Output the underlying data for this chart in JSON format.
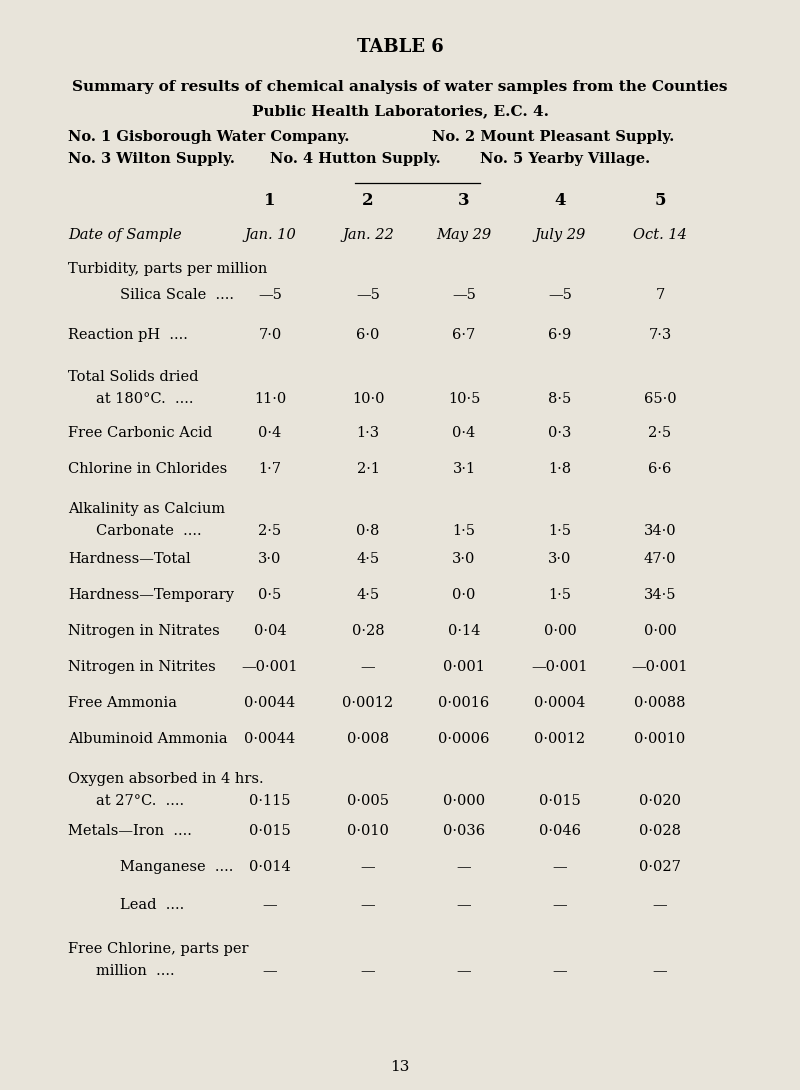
{
  "title": "TABLE 6",
  "subtitle_line1": "Summary of results of chemical analysis of water samples from the Counties",
  "subtitle_line2": "Public Health Laboratories, E.C. 4.",
  "subtitle_line3a": "No. 1 Gisborough Water Company.",
  "subtitle_line3b": "No. 2 Mount Pleasant Supply.",
  "subtitle_line4a": "No. 3 Wilton Supply.",
  "subtitle_line4b": "No. 4 Hutton Supply.",
  "subtitle_line4c": "No. 5 Yearby Village.",
  "col_headers": [
    "1",
    "2",
    "3",
    "4",
    "5"
  ],
  "background_color": "#e8e4da",
  "rows": [
    {
      "label": "Date of Sample",
      "label2": null,
      "indent": 0,
      "italic": true,
      "dots": false,
      "values": [
        "Jan. 10",
        "Jan. 22",
        "May 29",
        "July 29",
        "Oct. 14"
      ],
      "italic_vals": true
    },
    {
      "label": "Turbidity, parts per million",
      "label2": null,
      "indent": 0,
      "italic": false,
      "dots": false,
      "values": [
        null,
        null,
        null,
        null,
        null
      ],
      "section_header": true
    },
    {
      "label": "Silica Scale",
      "label2": null,
      "indent": 1,
      "italic": false,
      "dots": true,
      "values": [
        "—5",
        "—5",
        "—5",
        "—5",
        "7"
      ]
    },
    {
      "label": "Reaction pH",
      "label2": null,
      "indent": 0,
      "italic": false,
      "dots": true,
      "values": [
        "7·0",
        "6·0",
        "6·7",
        "6·9",
        "7·3"
      ]
    },
    {
      "label": "Total Solids dried",
      "label2": "at 180°C.",
      "indent": 0,
      "italic": false,
      "dots": true,
      "values": [
        "11·0",
        "10·0",
        "10·5",
        "8·5",
        "65·0"
      ]
    },
    {
      "label": "Free Carbonic Acid",
      "label2": null,
      "indent": 0,
      "italic": false,
      "dots": false,
      "values": [
        "0·4",
        "1·3",
        "0·4",
        "0·3",
        "2·5"
      ]
    },
    {
      "label": "Chlorine in Chlorides",
      "label2": null,
      "indent": 0,
      "italic": false,
      "dots": false,
      "values": [
        "1·7",
        "2·1",
        "3·1",
        "1·8",
        "6·6"
      ]
    },
    {
      "label": "Alkalinity as Calcium",
      "label2": "Carbonate",
      "indent": 0,
      "italic": false,
      "dots": true,
      "values": [
        "2·5",
        "0·8",
        "1·5",
        "1·5",
        "34·0"
      ]
    },
    {
      "label": "Hardness—Total",
      "label2": null,
      "indent": 0,
      "italic": false,
      "dots": false,
      "values": [
        "3·0",
        "4·5",
        "3·0",
        "3·0",
        "47·0"
      ]
    },
    {
      "label": "Hardness—Temporary",
      "label2": null,
      "indent": 0,
      "italic": false,
      "dots": false,
      "values": [
        "0·5",
        "4·5",
        "0·0",
        "1·5",
        "34·5"
      ]
    },
    {
      "label": "Nitrogen in Nitrates",
      "label2": null,
      "indent": 0,
      "italic": false,
      "dots": false,
      "values": [
        "0·04",
        "0·28",
        "0·14",
        "0·00",
        "0·00"
      ]
    },
    {
      "label": "Nitrogen in Nitrites",
      "label2": null,
      "indent": 0,
      "italic": false,
      "dots": false,
      "values": [
        "—0·001",
        "—",
        "0·001",
        "—0·001",
        "—0·001"
      ]
    },
    {
      "label": "Free Ammonia",
      "label2": null,
      "indent": 0,
      "italic": false,
      "dots": false,
      "values": [
        "0·0044",
        "0·0012",
        "0·0016",
        "0·0004",
        "0·0088"
      ]
    },
    {
      "label": "Albuminoid Ammonia",
      "label2": null,
      "indent": 0,
      "italic": false,
      "dots": false,
      "values": [
        "0·0044",
        "0·008",
        "0·0006",
        "0·0012",
        "0·0010"
      ]
    },
    {
      "label": "Oxygen absorbed in 4 hrs.",
      "label2": "at 27°C.",
      "indent": 0,
      "italic": false,
      "dots": true,
      "values": [
        "0·115",
        "0·005",
        "0·000",
        "0·015",
        "0·020"
      ]
    },
    {
      "label": "Metals—Iron",
      "label2": null,
      "indent": 0,
      "italic": false,
      "dots": true,
      "values": [
        "0·015",
        "0·010",
        "0·036",
        "0·046",
        "0·028"
      ]
    },
    {
      "label": "Manganese",
      "label2": null,
      "indent": 1,
      "italic": false,
      "dots": true,
      "values": [
        "0·014",
        "—",
        "—",
        "—",
        "0·027"
      ]
    },
    {
      "label": "Lead",
      "label2": null,
      "indent": 1,
      "italic": false,
      "dots": true,
      "values": [
        "—",
        "—",
        "—",
        "—",
        "—"
      ]
    },
    {
      "label": "Free Chlorine, parts per",
      "label2": "million",
      "indent": 0,
      "italic": false,
      "dots": true,
      "values": [
        "—",
        "—",
        "—",
        "—",
        "—"
      ]
    }
  ],
  "page_number": "13"
}
